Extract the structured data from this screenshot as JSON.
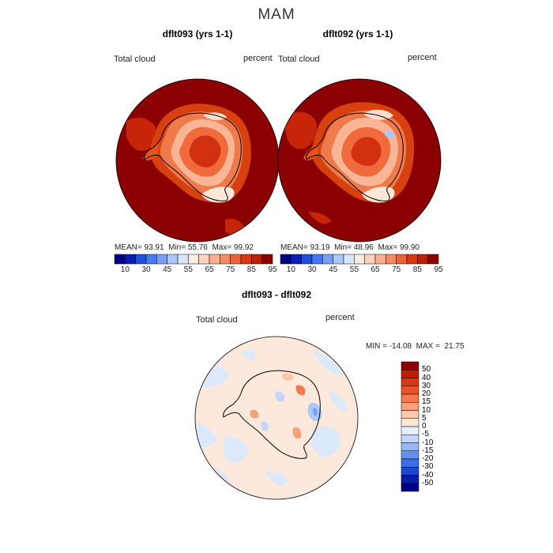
{
  "figure": {
    "season": "MAM"
  },
  "panels": [
    {
      "title": "dflt093 (yrs 1-1)",
      "variable": "Total cloud",
      "units": "percent",
      "stats": {
        "mean": "93.91",
        "min": "55.76",
        "max": "99.92"
      }
    },
    {
      "title": "dflt092 (yrs 1-1)",
      "variable": "Total cloud",
      "units": "percent",
      "stats": {
        "mean": "93.19",
        "min": "48.96",
        "max": "99.90"
      }
    }
  ],
  "diff_panel": {
    "title": "dflt093 - dflt092",
    "variable": "Total cloud",
    "units": "percent",
    "stats_text": "MIN = -14.08  MAX =  21.75"
  },
  "stat_labels": {
    "mean": "MEAN=",
    "min": "Min=",
    "max": "Max="
  },
  "abs_colorbar": {
    "tick_labels": [
      "10",
      "30",
      "45",
      "55",
      "65",
      "75",
      "85",
      "95"
    ],
    "colors": [
      "#000080",
      "#0a1eb4",
      "#1e50dc",
      "#4678f0",
      "#7aa0f5",
      "#aac8fa",
      "#d7e6fa",
      "#fbecdf",
      "#fbd2bb",
      "#f8af90",
      "#f58a64",
      "#ee6238",
      "#dc3714",
      "#be1e05",
      "#8c0000"
    ]
  },
  "diff_colorbar": {
    "tick_labels": [
      "50",
      "40",
      "30",
      "20",
      "15",
      "10",
      "5",
      "0",
      "-5",
      "-10",
      "-15",
      "-20",
      "-30",
      "-40",
      "-50"
    ],
    "colors": [
      "#8c0000",
      "#be1e05",
      "#dc3714",
      "#ee5028",
      "#f57850",
      "#f8a07c",
      "#fbc8aa",
      "#fde6d8",
      "#e6f0fc",
      "#c3d7fa",
      "#96b9f5",
      "#6491eb",
      "#3c6ee6",
      "#1e46d2",
      "#0a1eaa",
      "#000080"
    ]
  },
  "map_colors": {
    "abs_ocean": "#8b0000",
    "diff_background": "#fde9db",
    "diff_negative": "#dce9fb",
    "coastline": "#000000"
  }
}
